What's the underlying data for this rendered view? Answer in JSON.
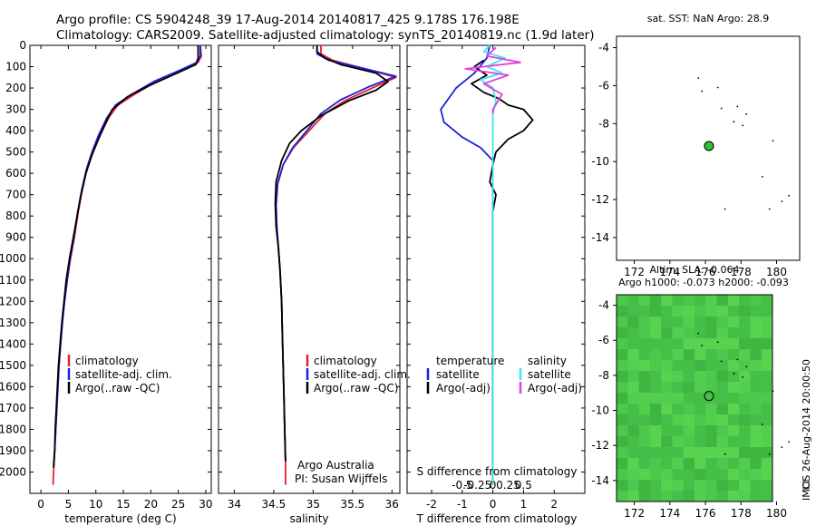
{
  "header": {
    "line1": "Argo profile: CS 5904248_39 17-Aug-2014 20140817_425 9.178S 176.198E",
    "line2": "Climatology: CARS2009. Satellite-adjusted climatology: synTS_20140819.nc (1.9d later)"
  },
  "colors": {
    "climatology": "#e8202a",
    "satellite": "#1c22d8",
    "argo": "#000000",
    "sal_satellite": "#3ee6ee",
    "sal_argo": "#e23ee0",
    "marker_green": "#2ec02e",
    "map_green": "#4cc84c"
  },
  "chart_data": [
    {
      "id": "temperature",
      "type": "line",
      "xlabel": "temperature (deg C)",
      "ylabel": "",
      "xlim": [
        -2,
        31
      ],
      "ylim": [
        2100,
        0
      ],
      "xticks": [
        0,
        5,
        10,
        15,
        20,
        25,
        30
      ],
      "yticks": [
        0,
        100,
        200,
        300,
        400,
        500,
        600,
        700,
        800,
        900,
        1000,
        1100,
        1200,
        1300,
        1400,
        1500,
        1600,
        1700,
        1800,
        1900,
        2000
      ],
      "legend": [
        "climatology",
        "satellite-adj. clim.",
        "Argo(..raw -QC)"
      ],
      "legend_position": "lower-center",
      "series": [
        {
          "name": "climatology",
          "color": "#e8202a",
          "points": [
            [
              29.0,
              0
            ],
            [
              29.2,
              50
            ],
            [
              28.6,
              80
            ],
            [
              25.5,
              120
            ],
            [
              21,
              170
            ],
            [
              17,
              230
            ],
            [
              14,
              280
            ],
            [
              12.3,
              340
            ],
            [
              10.8,
              420
            ],
            [
              9.5,
              500
            ],
            [
              8.4,
              580
            ],
            [
              7.5,
              680
            ],
            [
              6.8,
              780
            ],
            [
              6.1,
              900
            ],
            [
              5.4,
              1000
            ],
            [
              4.8,
              1100
            ],
            [
              4.3,
              1200
            ],
            [
              3.9,
              1300
            ],
            [
              3.6,
              1400
            ],
            [
              3.3,
              1500
            ],
            [
              3.1,
              1600
            ],
            [
              2.9,
              1700
            ],
            [
              2.7,
              1800
            ],
            [
              2.5,
              1900
            ],
            [
              2.3,
              2000
            ],
            [
              2.2,
              2060
            ]
          ]
        },
        {
          "name": "satellite-adj. clim.",
          "color": "#1c22d8",
          "points": [
            [
              29.0,
              0
            ],
            [
              29.0,
              50
            ],
            [
              28.4,
              80
            ],
            [
              25,
              120
            ],
            [
              20.5,
              170
            ],
            [
              16.5,
              230
            ],
            [
              13.6,
              280
            ],
            [
              12,
              340
            ],
            [
              10.5,
              420
            ],
            [
              9.3,
              500
            ],
            [
              8.3,
              580
            ],
            [
              7.4,
              680
            ],
            [
              6.7,
              780
            ],
            [
              6.0,
              900
            ],
            [
              5.3,
              1000
            ],
            [
              4.8,
              1100
            ],
            [
              4.3,
              1200
            ],
            [
              3.9,
              1300
            ],
            [
              3.6,
              1400
            ],
            [
              3.3,
              1500
            ],
            [
              3.1,
              1600
            ],
            [
              2.9,
              1700
            ],
            [
              2.7,
              1800
            ],
            [
              2.5,
              1900
            ],
            [
              2.3,
              1970
            ]
          ]
        },
        {
          "name": "Argo(..raw -QC)",
          "color": "#000000",
          "points": [
            [
              28.6,
              0
            ],
            [
              28.6,
              60
            ],
            [
              28.2,
              90
            ],
            [
              24.8,
              130
            ],
            [
              19.6,
              190
            ],
            [
              15.8,
              240
            ],
            [
              13,
              300
            ],
            [
              11.5,
              380
            ],
            [
              10.3,
              450
            ],
            [
              9.2,
              520
            ],
            [
              8.2,
              600
            ],
            [
              7.3,
              700
            ],
            [
              6.6,
              800
            ],
            [
              5.9,
              900
            ],
            [
              5.2,
              1000
            ],
            [
              4.6,
              1100
            ],
            [
              4.2,
              1200
            ],
            [
              3.8,
              1300
            ],
            [
              3.5,
              1400
            ],
            [
              3.2,
              1500
            ],
            [
              3.0,
              1600
            ],
            [
              2.8,
              1700
            ],
            [
              2.6,
              1800
            ],
            [
              2.5,
              1900
            ],
            [
              2.3,
              1980
            ]
          ]
        }
      ]
    },
    {
      "id": "salinity",
      "type": "line",
      "xlabel": "salinity",
      "ylabel": "",
      "xlim": [
        33.8,
        36.1
      ],
      "ylim": [
        2100,
        0
      ],
      "xticks": [
        34,
        34.5,
        35,
        35.5,
        36
      ],
      "xticklabels": [
        "34",
        "34.5",
        "35",
        "35.5",
        "36"
      ],
      "legend": [
        "climatology",
        "satellite-adj. clim.",
        "Argo(..raw -QC)"
      ],
      "legend_position": "lower-right",
      "annotation": [
        "Argo Australia",
        "PI: Susan Wijffels"
      ],
      "series": [
        {
          "name": "climatology",
          "color": "#e8202a",
          "points": [
            [
              35.1,
              0
            ],
            [
              35.1,
              40
            ],
            [
              35.25,
              70
            ],
            [
              35.55,
              100
            ],
            [
              36.05,
              150
            ],
            [
              35.75,
              200
            ],
            [
              35.4,
              260
            ],
            [
              35.15,
              320
            ],
            [
              34.95,
              400
            ],
            [
              34.75,
              480
            ],
            [
              34.62,
              560
            ],
            [
              34.55,
              650
            ],
            [
              34.53,
              750
            ],
            [
              34.54,
              850
            ],
            [
              34.56,
              950
            ],
            [
              34.58,
              1050
            ],
            [
              34.6,
              1200
            ],
            [
              34.61,
              1350
            ],
            [
              34.62,
              1500
            ],
            [
              34.63,
              1650
            ],
            [
              34.64,
              1800
            ],
            [
              34.65,
              1950
            ],
            [
              34.65,
              2060
            ]
          ]
        },
        {
          "name": "satellite-adj. clim.",
          "color": "#1c22d8",
          "points": [
            [
              35.05,
              0
            ],
            [
              35.05,
              40
            ],
            [
              35.2,
              70
            ],
            [
              35.55,
              100
            ],
            [
              36.05,
              145
            ],
            [
              35.7,
              195
            ],
            [
              35.35,
              255
            ],
            [
              35.1,
              320
            ],
            [
              34.92,
              400
            ],
            [
              34.74,
              480
            ],
            [
              34.62,
              560
            ],
            [
              34.55,
              650
            ],
            [
              34.53,
              750
            ],
            [
              34.54,
              850
            ],
            [
              34.56,
              950
            ],
            [
              34.58,
              1050
            ],
            [
              34.6,
              1200
            ],
            [
              34.61,
              1350
            ],
            [
              34.62,
              1500
            ],
            [
              34.63,
              1650
            ],
            [
              34.64,
              1800
            ],
            [
              34.65,
              1950
            ]
          ]
        },
        {
          "name": "Argo(..raw -QC)",
          "color": "#000000",
          "points": [
            [
              35.05,
              0
            ],
            [
              35.05,
              30
            ],
            [
              35.15,
              60
            ],
            [
              35.35,
              90
            ],
            [
              35.8,
              130
            ],
            [
              35.95,
              170
            ],
            [
              35.8,
              210
            ],
            [
              35.45,
              260
            ],
            [
              35.1,
              330
            ],
            [
              34.85,
              400
            ],
            [
              34.7,
              460
            ],
            [
              34.6,
              540
            ],
            [
              34.53,
              640
            ],
            [
              34.52,
              740
            ],
            [
              34.53,
              850
            ],
            [
              34.56,
              950
            ],
            [
              34.58,
              1050
            ],
            [
              34.6,
              1200
            ],
            [
              34.61,
              1350
            ],
            [
              34.62,
              1500
            ],
            [
              34.63,
              1650
            ],
            [
              34.64,
              1800
            ],
            [
              34.65,
              1950
            ]
          ]
        }
      ]
    },
    {
      "id": "difference",
      "type": "line",
      "xlabel": "T difference from climatology",
      "xlabel_top": "S difference from climatology",
      "xlim": [
        -2.8,
        3.0
      ],
      "ylim": [
        2100,
        0
      ],
      "xticks": [
        -2,
        -1,
        0,
        1,
        2
      ],
      "sxticks": [
        -0.5,
        -0.25,
        0,
        0.25,
        0.5
      ],
      "sxticklabels": [
        "-0.5",
        "-0.25",
        "0",
        "0.25",
        "0.5"
      ],
      "legend_temperature": {
        "heading": "temperature",
        "items": [
          "satellite",
          "Argo(-adj)"
        ]
      },
      "legend_salinity": {
        "heading": "salinity",
        "items": [
          "satellite",
          "Argo(-adj)"
        ]
      },
      "series": [
        {
          "name": "T satellite",
          "color": "#1c22d8",
          "points": [
            [
              -0.1,
              0
            ],
            [
              -0.2,
              60
            ],
            [
              -0.6,
              130
            ],
            [
              -1.2,
              200
            ],
            [
              -1.7,
              300
            ],
            [
              -1.6,
              360
            ],
            [
              -1.0,
              430
            ],
            [
              -0.4,
              480
            ],
            [
              0,
              540
            ],
            [
              0,
              2060
            ]
          ]
        },
        {
          "name": "T Argo(-adj)",
          "color": "#000000",
          "points": [
            [
              -0.3,
              70
            ],
            [
              -0.6,
              100
            ],
            [
              -0.2,
              140
            ],
            [
              -0.7,
              180
            ],
            [
              -0.3,
              220
            ],
            [
              0.2,
              250
            ],
            [
              0.5,
              280
            ],
            [
              1.0,
              300
            ],
            [
              1.3,
              350
            ],
            [
              1.0,
              400
            ],
            [
              0.5,
              440
            ],
            [
              0.1,
              500
            ],
            [
              0,
              560
            ],
            [
              -0.1,
              640
            ],
            [
              0.1,
              700
            ],
            [
              0,
              780
            ],
            [
              0,
              2060
            ]
          ]
        },
        {
          "name": "S satellite",
          "color": "#3ee6ee",
          "points": [
            [
              -0.1,
              0
            ],
            [
              -0.3,
              30
            ],
            [
              0.4,
              60
            ],
            [
              -0.2,
              100
            ],
            [
              0.3,
              130
            ],
            [
              -0.4,
              160
            ],
            [
              0,
              200
            ],
            [
              0.1,
              260
            ],
            [
              0,
              320
            ],
            [
              0,
              2060
            ]
          ]
        },
        {
          "name": "S Argo(-adj)",
          "color": "#e23ee0",
          "points": [
            [
              0.1,
              10
            ],
            [
              -0.2,
              50
            ],
            [
              0.9,
              80
            ],
            [
              -0.9,
              110
            ],
            [
              0.5,
              140
            ],
            [
              -0.3,
              180
            ],
            [
              0.3,
              230
            ],
            [
              0,
              300
            ],
            [
              0,
              320
            ]
          ]
        }
      ]
    },
    {
      "id": "sst_map",
      "type": "scatter",
      "title": "sat. SST: NaN Argo: 28.9",
      "xlim": [
        171,
        181.3
      ],
      "ylim": [
        -15.2,
        -3.4
      ],
      "xticks": [
        172,
        174,
        176,
        178,
        180
      ],
      "yticks": [
        -4,
        -6,
        -8,
        -10,
        -12,
        -14
      ],
      "argo_position": [
        176.198,
        -9.178
      ],
      "islands": [
        [
          175.6,
          -5.6
        ],
        [
          176.7,
          -6.1
        ],
        [
          175.8,
          -6.3
        ],
        [
          176.9,
          -7.2
        ],
        [
          177.8,
          -7.1
        ],
        [
          178.3,
          -7.5
        ],
        [
          177.6,
          -7.9
        ],
        [
          178.1,
          -8.1
        ],
        [
          179.8,
          -8.9
        ],
        [
          179.2,
          -10.8
        ],
        [
          180.3,
          -12.1
        ],
        [
          180.7,
          -11.8
        ],
        [
          179.6,
          -12.5
        ],
        [
          177.1,
          -12.5
        ]
      ]
    },
    {
      "id": "sla_map",
      "type": "heatmap",
      "title": "Altim. SLA: -0.064",
      "subtitle": "Argo h1000: -0.073 h2000: -0.093",
      "xlim": [
        171,
        181.3
      ],
      "ylim": [
        -15.2,
        -3.4
      ],
      "xticks": [
        172,
        174,
        176,
        178,
        180
      ],
      "yticks": [
        -4,
        -6,
        -8,
        -10,
        -12,
        -14
      ],
      "side_label": "IMOS 26-Aug-2014 20:00:50",
      "argo_position": [
        176.198,
        -9.178
      ]
    }
  ]
}
